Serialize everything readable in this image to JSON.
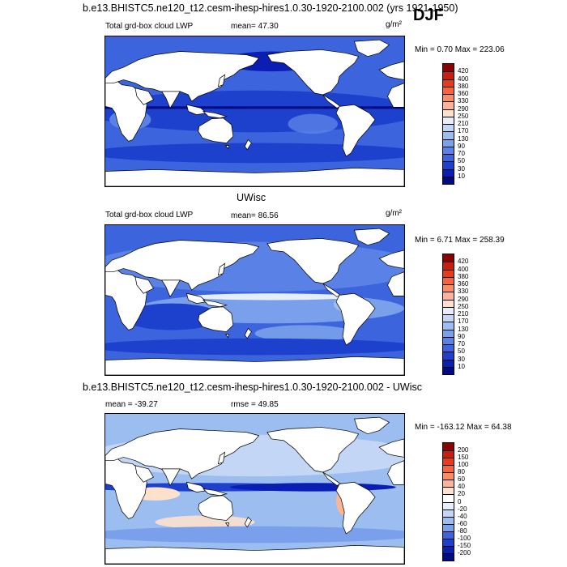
{
  "season_label": "DJF",
  "panels": [
    {
      "id": "model",
      "title": "b.e13.BHISTC5.ne120_t12.cesm-ihesp-hires1.0.30-1920-2100.002 (yrs 1921-1950)",
      "variable": "Total grd-box cloud LWP",
      "stat": "mean=  47.30",
      "units": "g/m²",
      "minmax": "Min =   0.70 Max = 223.06",
      "colorbar": {
        "labels": [
          "420",
          "400",
          "380",
          "360",
          "330",
          "290",
          "250",
          "210",
          "170",
          "130",
          "90",
          "70",
          "50",
          "30",
          "10"
        ],
        "colors": [
          "#8b0000",
          "#c81e0f",
          "#e63c1e",
          "#f5643c",
          "#fa8c64",
          "#fcb496",
          "#fde1cd",
          "#e6eefa",
          "#c3d6f5",
          "#9bbdf0",
          "#7aa0eb",
          "#5a82e6",
          "#3c64dc",
          "#1e41cd",
          "#0a1eb4",
          "#000a82"
        ]
      },
      "style": "model"
    },
    {
      "id": "obs",
      "title": "UWisc",
      "variable": "Total grd-box cloud LWP",
      "stat": "mean=  86.56",
      "units": "g/m²",
      "minmax": "Min =   6.71 Max = 258.39",
      "colorbar": {
        "labels": [
          "420",
          "400",
          "380",
          "360",
          "330",
          "290",
          "250",
          "210",
          "170",
          "130",
          "90",
          "70",
          "50",
          "30",
          "10"
        ],
        "colors": [
          "#8b0000",
          "#c81e0f",
          "#e63c1e",
          "#f5643c",
          "#fa8c64",
          "#fcb496",
          "#fde1cd",
          "#e6eefa",
          "#c3d6f5",
          "#9bbdf0",
          "#7aa0eb",
          "#5a82e6",
          "#3c64dc",
          "#1e41cd",
          "#0a1eb4",
          "#000a82"
        ]
      },
      "style": "obs"
    },
    {
      "id": "diff",
      "title": "b.e13.BHISTC5.ne120_t12.cesm-ihesp-hires1.0.30-1920-2100.002 - UWisc",
      "variable": "mean = -39.27",
      "stat": "rmse =  49.85",
      "units": "",
      "minmax": "Min = -163.12 Max =  64.38",
      "colorbar": {
        "labels": [
          "200",
          "150",
          "100",
          "80",
          "60",
          "40",
          "20",
          "0",
          "-20",
          "-40",
          "-60",
          "-80",
          "-100",
          "-150",
          "-200"
        ],
        "colors": [
          "#8b0000",
          "#c81e0f",
          "#e63c1e",
          "#f5643c",
          "#fa8c64",
          "#fcb496",
          "#fde1cd",
          "#ffffff",
          "#e6eefa",
          "#c3d6f5",
          "#9bbdf0",
          "#7aa0eb",
          "#3c64dc",
          "#1e41cd",
          "#0a1eb4",
          "#000a82"
        ]
      },
      "style": "diff"
    }
  ]
}
